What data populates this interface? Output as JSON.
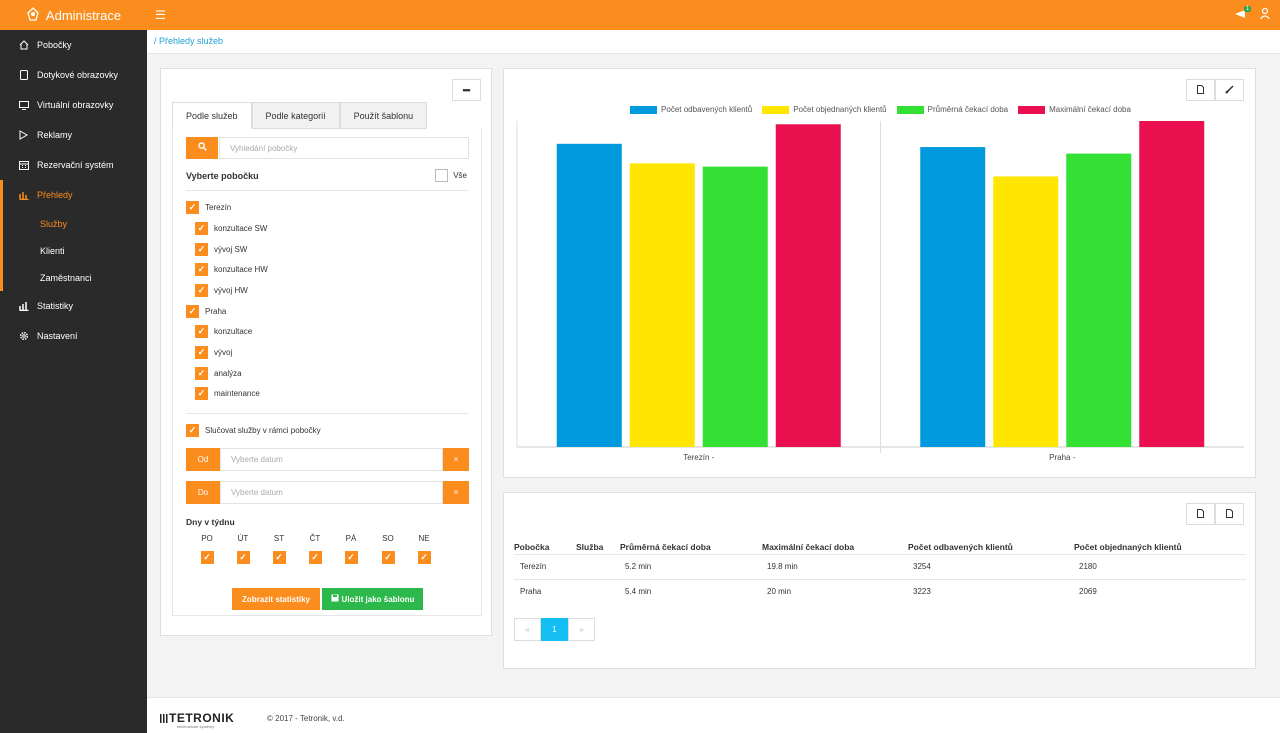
{
  "app": {
    "title": "Administrace",
    "notification_count": "1"
  },
  "sidebar": {
    "items": [
      {
        "label": "Pobočky",
        "icon": "home-icon"
      },
      {
        "label": "Dotykové obrazovky",
        "icon": "tablet-icon"
      },
      {
        "label": "Virtuální obrazovky",
        "icon": "monitor-icon"
      },
      {
        "label": "Reklamy",
        "icon": "play-icon"
      },
      {
        "label": "Rezervační systém",
        "icon": "calendar-icon"
      },
      {
        "label": "Přehledy",
        "icon": "bar-chart-icon"
      },
      {
        "label": "Statistiky",
        "icon": "stats-icon"
      },
      {
        "label": "Nastavení",
        "icon": "gear-icon"
      }
    ],
    "subitems": [
      {
        "label": "Služby"
      },
      {
        "label": "Klienti"
      },
      {
        "label": "Zaměstnanci"
      }
    ]
  },
  "breadcrumb": "/ Přehledy služeb",
  "filter": {
    "collapse_label": "━",
    "tabs": [
      "Podle služeb",
      "Podle kategorií",
      "Použít šablonu"
    ],
    "search_placeholder": "Vyhledání pobočky",
    "select_branch_label": "Vyberte pobočku",
    "all_label": "Vše",
    "branches": [
      {
        "name": "Terezín",
        "services": [
          "konzultace SW",
          "vývoj SW",
          "konzultace HW",
          "vývoj HW"
        ]
      },
      {
        "name": "Praha",
        "services": [
          "konzultace",
          "vývoj",
          "analýza",
          "maintenance"
        ]
      }
    ],
    "merge_label": "Slučovat služby v rámci pobočky",
    "from_label": "Od",
    "to_label": "Do",
    "date_placeholder": "Vyberte datum",
    "clear_label": "×",
    "days_label": "Dny v týdnu",
    "days": [
      "PO",
      "ÚT",
      "ST",
      "ČT",
      "PÁ",
      "SO",
      "NE"
    ],
    "show_button": "Zobrazit statistiky",
    "save_button": "Uložit jako šablonu"
  },
  "chart_data": {
    "type": "bar",
    "categories": [
      "Terezín -",
      "Praha -"
    ],
    "series": [
      {
        "name": "Počet odbavených klientů",
        "color": "#0099dd"
      },
      {
        "name": "Počet objednaných klientů",
        "color": "#ffe600"
      },
      {
        "name": "Průměrná čekací doba",
        "color": "#33e033"
      },
      {
        "name": "Maximální čekací doba",
        "color": "#ea1050"
      }
    ],
    "relative_heights": [
      [
        0.93,
        0.87,
        0.86,
        0.99
      ],
      [
        0.92,
        0.83,
        0.9,
        1.0
      ]
    ],
    "ylim": [
      0,
      1
    ],
    "legend": "top"
  },
  "table": {
    "headers": [
      "Pobočka",
      "Služba",
      "Průměrná čekací doba",
      "Maximální čekací doba",
      "Počet odbavených klientů",
      "Počet objednaných klientů"
    ],
    "rows": [
      [
        "Terezín",
        "",
        "5.2 min",
        "19.8 min",
        "3254",
        "2180"
      ],
      [
        "Praha",
        "",
        "5.4 min",
        "20 min",
        "3223",
        "2069"
      ]
    ],
    "pager": {
      "prev": "«",
      "current": "1",
      "next": "»"
    }
  },
  "footer": {
    "logo": "TETRONIK",
    "logo_sub": "elektronické systémy",
    "copyright": "© 2017 - Tetronik, v.d."
  }
}
